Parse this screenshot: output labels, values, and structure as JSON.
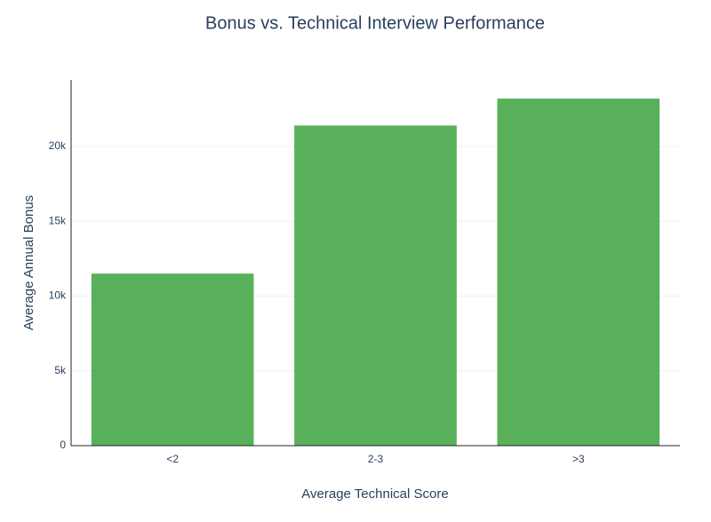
{
  "chart_data": {
    "type": "bar",
    "title": "Bonus vs. Technical Interview Performance",
    "x_label": "Average Technical Score",
    "y_label": "Average Annual Bonus",
    "categories": [
      "<2",
      "2-3",
      ">3"
    ],
    "values": [
      11500,
      21400,
      23200
    ],
    "color": "#58b05a",
    "ylim": [
      0,
      24450
    ],
    "yticks": [
      0,
      {
        "value": 5000,
        "label": "5k"
      },
      {
        "value": 10000,
        "label": "10k"
      },
      {
        "value": 15000,
        "label": "15k"
      },
      {
        "value": 20000,
        "label": "20k"
      }
    ],
    "grid": true
  }
}
